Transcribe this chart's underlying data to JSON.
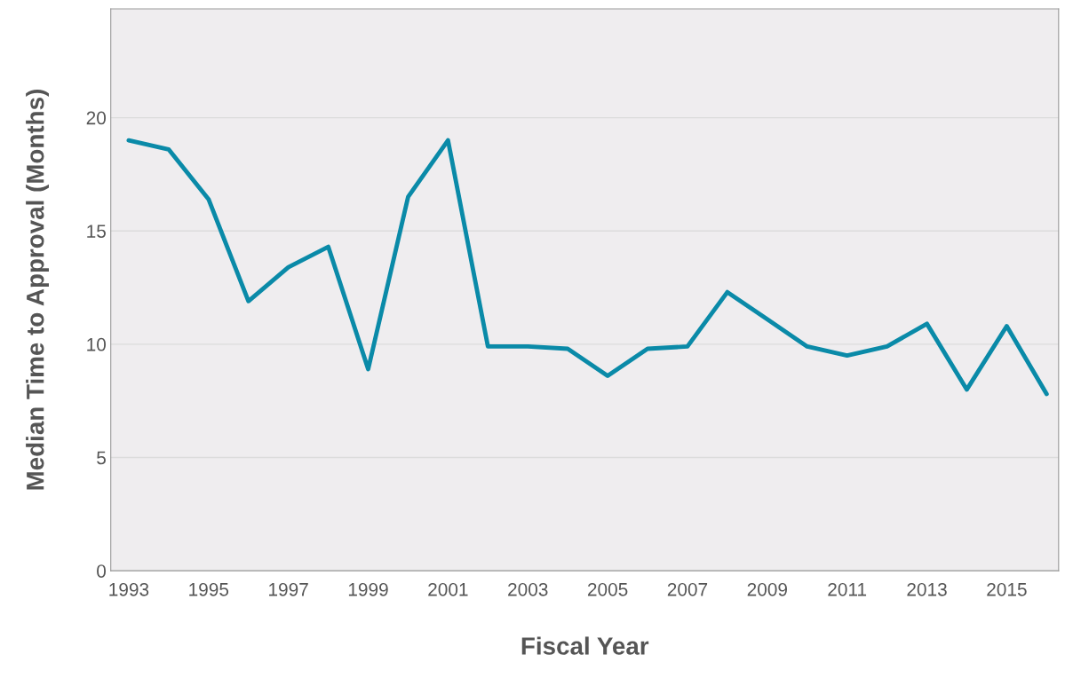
{
  "chart_data": {
    "type": "line",
    "xlabel": "Fiscal Year",
    "ylabel": "Median Time to Approval (Months)",
    "x": [
      1993,
      1994,
      1995,
      1996,
      1997,
      1998,
      1999,
      2000,
      2001,
      2002,
      2003,
      2004,
      2005,
      2006,
      2007,
      2008,
      2009,
      2010,
      2011,
      2012,
      2013,
      2014,
      2015,
      2016
    ],
    "series": [
      {
        "color": "#0a8aa8",
        "values": [
          19.0,
          18.6,
          16.4,
          11.9,
          13.4,
          14.3,
          8.9,
          16.5,
          19.0,
          9.9,
          9.9,
          9.8,
          8.6,
          9.8,
          9.9,
          12.3,
          11.1,
          9.9,
          9.5,
          9.9,
          10.9,
          8.0,
          10.8,
          7.8
        ]
      }
    ],
    "xlim": [
      1992.55,
      2016.3
    ],
    "ylim": [
      0,
      24.8
    ],
    "xticks": [
      1993,
      1995,
      1997,
      1999,
      2001,
      2003,
      2005,
      2007,
      2009,
      2011,
      2013,
      2015
    ],
    "yticks": [
      0,
      5,
      10,
      15,
      20
    ],
    "grid": "y",
    "legend": false,
    "marker": "none",
    "line_style": "solid"
  }
}
